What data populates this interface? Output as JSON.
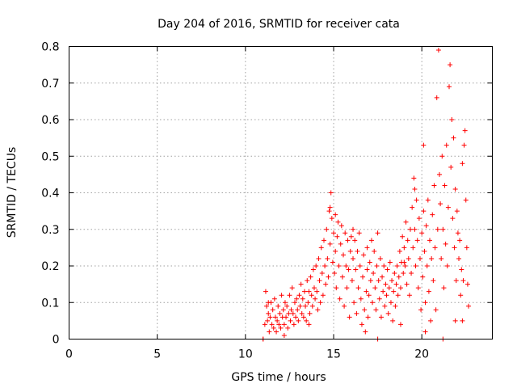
{
  "chart_data": {
    "type": "scatter",
    "title": "Day 204 of 2016, SRMTID for receiver cata",
    "xlabel": "GPS time / hours",
    "ylabel": "SRMTID / TECUs",
    "xlim": [
      0,
      24
    ],
    "ylim": [
      0,
      0.8
    ],
    "xticks": [
      "0",
      "5",
      "10",
      "15",
      "20"
    ],
    "yticks": [
      "0",
      "0.1",
      "0.2",
      "0.3",
      "0.4",
      "0.5",
      "0.6",
      "0.7",
      "0.8"
    ],
    "grid": true,
    "marker": "+",
    "color": "#ff0000",
    "series": [
      {
        "name": "SRMTID",
        "points": [
          [
            11.0,
            0.0
          ],
          [
            11.0,
            0.0
          ],
          [
            11.1,
            0.04
          ],
          [
            11.15,
            0.13
          ],
          [
            11.2,
            0.09
          ],
          [
            11.25,
            0.05
          ],
          [
            11.3,
            0.07
          ],
          [
            11.35,
            0.02
          ],
          [
            11.4,
            0.06
          ],
          [
            11.45,
            0.1
          ],
          [
            11.5,
            0.04
          ],
          [
            11.55,
            0.08
          ],
          [
            11.6,
            0.03
          ],
          [
            11.65,
            0.11
          ],
          [
            11.7,
            0.06
          ],
          [
            11.75,
            0.02
          ],
          [
            11.8,
            0.05
          ],
          [
            11.85,
            0.09
          ],
          [
            11.9,
            0.04
          ],
          [
            11.95,
            0.07
          ],
          [
            12.0,
            0.03
          ],
          [
            12.05,
            0.12
          ],
          [
            12.1,
            0.06
          ],
          [
            12.15,
            0.08
          ],
          [
            12.2,
            0.04
          ],
          [
            12.25,
            0.1
          ],
          [
            12.3,
            0.06
          ],
          [
            12.35,
            0.09
          ],
          [
            12.4,
            0.03
          ],
          [
            12.45,
            0.07
          ],
          [
            12.5,
            0.12
          ],
          [
            12.55,
            0.05
          ],
          [
            12.6,
            0.08
          ],
          [
            12.65,
            0.14
          ],
          [
            12.7,
            0.07
          ],
          [
            12.75,
            0.04
          ],
          [
            12.8,
            0.1
          ],
          [
            12.85,
            0.06
          ],
          [
            12.9,
            0.11
          ],
          [
            12.95,
            0.08
          ],
          [
            13.0,
            0.05
          ],
          [
            13.05,
            0.12
          ],
          [
            13.1,
            0.09
          ],
          [
            13.15,
            0.15
          ],
          [
            13.2,
            0.07
          ],
          [
            13.25,
            0.11
          ],
          [
            13.3,
            0.06
          ],
          [
            13.35,
            0.13
          ],
          [
            13.4,
            0.09
          ],
          [
            13.45,
            0.05
          ],
          [
            13.5,
            0.16
          ],
          [
            13.55,
            0.1
          ],
          [
            13.6,
            0.13
          ],
          [
            13.65,
            0.07
          ],
          [
            13.7,
            0.17
          ],
          [
            13.75,
            0.12
          ],
          [
            13.8,
            0.09
          ],
          [
            13.85,
            0.19
          ],
          [
            13.9,
            0.14
          ],
          [
            13.95,
            0.11
          ],
          [
            14.0,
            0.2
          ],
          [
            14.05,
            0.13
          ],
          [
            14.1,
            0.08
          ],
          [
            14.15,
            0.22
          ],
          [
            14.2,
            0.16
          ],
          [
            14.25,
            0.1
          ],
          [
            14.3,
            0.25
          ],
          [
            14.35,
            0.18
          ],
          [
            14.4,
            0.12
          ],
          [
            14.45,
            0.27
          ],
          [
            14.5,
            0.2
          ],
          [
            14.55,
            0.15
          ],
          [
            14.6,
            0.3
          ],
          [
            14.65,
            0.22
          ],
          [
            14.7,
            0.17
          ],
          [
            14.75,
            0.35
          ],
          [
            14.8,
            0.26
          ],
          [
            14.85,
            0.4
          ],
          [
            14.9,
            0.33
          ],
          [
            14.95,
            0.21
          ],
          [
            15.0,
            0.29
          ],
          [
            15.05,
            0.18
          ],
          [
            15.1,
            0.24
          ],
          [
            15.15,
            0.14
          ],
          [
            15.2,
            0.28
          ],
          [
            15.25,
            0.32
          ],
          [
            15.3,
            0.2
          ],
          [
            15.35,
            0.11
          ],
          [
            15.4,
            0.26
          ],
          [
            15.45,
            0.31
          ],
          [
            15.5,
            0.17
          ],
          [
            15.55,
            0.23
          ],
          [
            15.6,
            0.09
          ],
          [
            15.65,
            0.29
          ],
          [
            15.7,
            0.2
          ],
          [
            15.75,
            0.14
          ],
          [
            15.8,
            0.27
          ],
          [
            15.85,
            0.19
          ],
          [
            15.9,
            0.06
          ],
          [
            15.95,
            0.24
          ],
          [
            16.0,
            0.28
          ],
          [
            16.05,
            0.16
          ],
          [
            16.1,
            0.22
          ],
          [
            16.15,
            0.1
          ],
          [
            16.2,
            0.27
          ],
          [
            16.25,
            0.19
          ],
          [
            16.3,
            0.07
          ],
          [
            16.35,
            0.24
          ],
          [
            16.4,
            0.14
          ],
          [
            16.45,
            0.29
          ],
          [
            16.5,
            0.2
          ],
          [
            16.55,
            0.11
          ],
          [
            16.6,
            0.04
          ],
          [
            16.65,
            0.17
          ],
          [
            16.7,
            0.23
          ],
          [
            16.75,
            0.08
          ],
          [
            16.8,
            0.02
          ],
          [
            16.85,
            0.13
          ],
          [
            16.9,
            0.19
          ],
          [
            16.95,
            0.06
          ],
          [
            17.0,
            0.12
          ],
          [
            17.05,
            0.21
          ],
          [
            17.1,
            0.16
          ],
          [
            17.15,
            0.27
          ],
          [
            17.2,
            0.1
          ],
          [
            17.25,
            0.18
          ],
          [
            17.3,
            0.24
          ],
          [
            17.35,
            0.14
          ],
          [
            17.4,
            0.08
          ],
          [
            17.45,
            0.2
          ],
          [
            17.5,
            0.29
          ],
          [
            17.55,
            0.16
          ],
          [
            17.6,
            0.11
          ],
          [
            17.65,
            0.22
          ],
          [
            17.7,
            0.06
          ],
          [
            17.75,
            0.17
          ],
          [
            17.8,
            0.13
          ],
          [
            17.85,
            0.2
          ],
          [
            17.9,
            0.09
          ],
          [
            17.95,
            0.15
          ],
          [
            18.0,
            0.12
          ],
          [
            18.05,
            0.19
          ],
          [
            18.1,
            0.07
          ],
          [
            18.15,
            0.14
          ],
          [
            18.2,
            0.21
          ],
          [
            18.25,
            0.1
          ],
          [
            18.3,
            0.16
          ],
          [
            18.35,
            0.05
          ],
          [
            18.4,
            0.13
          ],
          [
            18.45,
            0.18
          ],
          [
            18.5,
            0.09
          ],
          [
            18.55,
            0.15
          ],
          [
            18.6,
            0.2
          ],
          [
            18.65,
            0.12
          ],
          [
            18.7,
            0.17
          ],
          [
            18.75,
            0.24
          ],
          [
            18.8,
            0.14
          ],
          [
            18.85,
            0.21
          ],
          [
            18.9,
            0.28
          ],
          [
            18.95,
            0.18
          ],
          [
            19.0,
            0.25
          ],
          [
            19.05,
            0.2
          ],
          [
            19.1,
            0.32
          ],
          [
            19.15,
            0.15
          ],
          [
            19.2,
            0.27
          ],
          [
            19.25,
            0.22
          ],
          [
            19.3,
            0.12
          ],
          [
            19.35,
            0.3
          ],
          [
            19.4,
            0.18
          ],
          [
            19.45,
            0.36
          ],
          [
            19.5,
            0.25
          ],
          [
            19.55,
            0.44
          ],
          [
            19.6,
            0.3
          ],
          [
            19.65,
            0.2
          ],
          [
            19.7,
            0.38
          ],
          [
            19.75,
            0.27
          ],
          [
            19.8,
            0.14
          ],
          [
            19.85,
            0.33
          ],
          [
            19.9,
            0.22
          ],
          [
            19.95,
            0.08
          ],
          [
            20.0,
            0.29
          ],
          [
            20.05,
            0.17
          ],
          [
            20.1,
            0.35
          ],
          [
            20.15,
            0.24
          ],
          [
            20.2,
            0.1
          ],
          [
            20.25,
            0.31
          ],
          [
            20.3,
            0.2
          ],
          [
            20.35,
            0.38
          ],
          [
            20.4,
            0.13
          ],
          [
            20.45,
            0.27
          ],
          [
            20.5,
            0.05
          ],
          [
            20.55,
            0.22
          ],
          [
            20.6,
            0.34
          ],
          [
            20.65,
            0.16
          ],
          [
            20.7,
            0.42
          ],
          [
            20.75,
            0.25
          ],
          [
            20.8,
            0.08
          ],
          [
            20.85,
            0.66
          ],
          [
            20.9,
            0.3
          ],
          [
            20.95,
            0.79
          ],
          [
            21.0,
            0.45
          ],
          [
            21.05,
            0.37
          ],
          [
            21.1,
            0.22
          ],
          [
            21.15,
            0.5
          ],
          [
            21.2,
            0.3
          ],
          [
            21.25,
            0.14
          ],
          [
            21.3,
            0.42
          ],
          [
            21.35,
            0.26
          ],
          [
            21.4,
            0.53
          ],
          [
            21.45,
            0.2
          ],
          [
            21.5,
            0.36
          ],
          [
            21.55,
            0.69
          ],
          [
            21.6,
            0.75
          ],
          [
            21.65,
            0.47
          ],
          [
            21.7,
            0.6
          ],
          [
            21.75,
            0.33
          ],
          [
            21.8,
            0.55
          ],
          [
            21.85,
            0.25
          ],
          [
            21.9,
            0.41
          ],
          [
            21.95,
            0.16
          ],
          [
            22.0,
            0.35
          ],
          [
            22.05,
            0.29
          ],
          [
            22.1,
            0.22
          ],
          [
            22.15,
            0.27
          ],
          [
            22.2,
            0.12
          ],
          [
            22.25,
            0.19
          ],
          [
            22.3,
            0.05
          ],
          [
            22.35,
            0.16
          ],
          [
            22.4,
            0.53
          ],
          [
            22.45,
            0.57
          ],
          [
            22.5,
            0.38
          ],
          [
            22.55,
            0.25
          ],
          [
            22.6,
            0.15
          ],
          [
            22.65,
            0.09
          ],
          [
            11.3,
            0.1
          ],
          [
            12.2,
            0.01
          ],
          [
            13.6,
            0.04
          ],
          [
            14.8,
            0.36
          ],
          [
            15.1,
            0.34
          ],
          [
            16.9,
            0.25
          ],
          [
            17.5,
            0.0
          ],
          [
            18.8,
            0.04
          ],
          [
            19.6,
            0.41
          ],
          [
            20.2,
            0.02
          ],
          [
            21.2,
            0.0
          ],
          [
            22.3,
            0.48
          ],
          [
            20.1,
            0.53
          ],
          [
            21.9,
            0.05
          ],
          [
            19.0,
            0.21
          ],
          [
            16.1,
            0.3
          ]
        ]
      }
    ]
  }
}
